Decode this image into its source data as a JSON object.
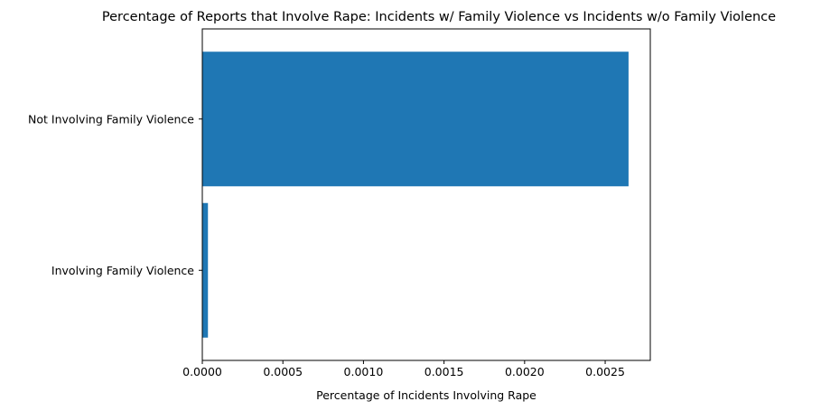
{
  "chart_data": {
    "type": "bar",
    "orientation": "horizontal",
    "title": "Percentage of Reports that Involve Rape: Incidents w/ Family Violence vs Incidents w/o Family Violence",
    "categories": [
      "Involving Family Violence",
      "Not Involving Family Violence"
    ],
    "values": [
      3.5e-05,
      0.002645
    ],
    "xlabel": "Percentage of Incidents Involving Rape",
    "ylabel": "",
    "xlim": [
      0,
      0.00278
    ],
    "xticks": [
      0,
      0.0005,
      0.001,
      0.0015,
      0.002,
      0.0025
    ],
    "xtick_labels": [
      "0.0000",
      "0.0005",
      "0.0010",
      "0.0015",
      "0.0020",
      "0.0025"
    ],
    "bar_color": "#1f77b4",
    "grid": false,
    "legend": "none"
  }
}
